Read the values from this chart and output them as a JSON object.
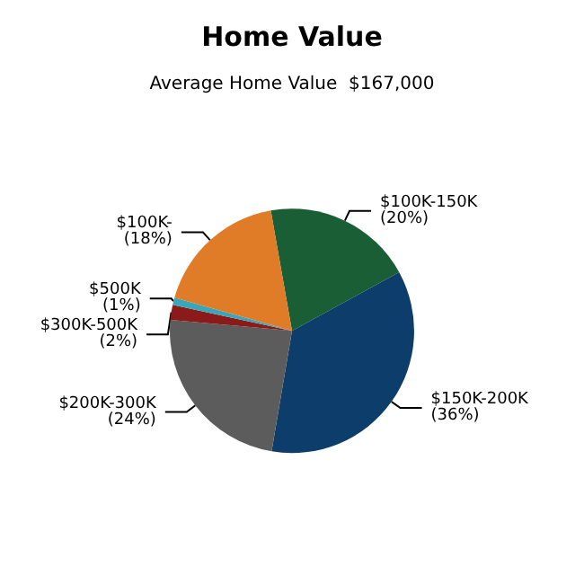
{
  "chart_data": {
    "type": "pie",
    "title": "Home Value",
    "subtitle": "Average Home Value  $167,000",
    "categories": [
      "$100K-150K",
      "$150K-200K",
      "$200K-300K",
      "$300K-500K",
      "$500K",
      "$100K-"
    ],
    "values": [
      20,
      36,
      24,
      2,
      1,
      18
    ],
    "value_labels": [
      "(20%)",
      "(36%)",
      "(24%)",
      "(2%)",
      "(1%)",
      "(18%)"
    ],
    "colors": [
      "#1a5e35",
      "#0d3d6b",
      "#5c5c5c",
      "#8b1a1a",
      "#3aa6b8",
      "#e07b28"
    ],
    "legend": false
  }
}
